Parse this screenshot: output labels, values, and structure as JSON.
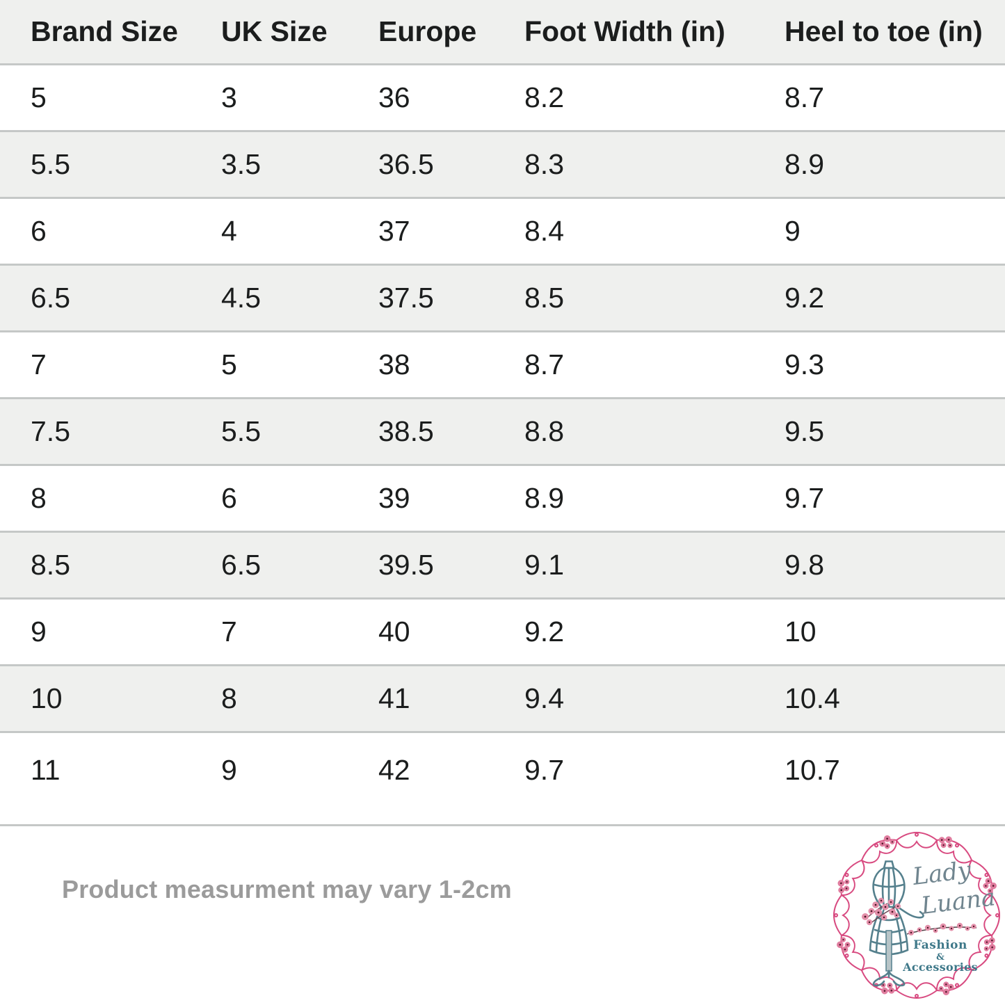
{
  "table": {
    "columns": [
      "Brand Size",
      "UK Size",
      "Europe",
      "Foot Width (in)",
      "Heel to toe (in)"
    ],
    "rows": [
      [
        "5",
        "3",
        "36",
        "8.2",
        "8.7"
      ],
      [
        "5.5",
        "3.5",
        "36.5",
        "8.3",
        "8.9"
      ],
      [
        "6",
        "4",
        "37",
        "8.4",
        "9"
      ],
      [
        "6.5",
        "4.5",
        "37.5",
        "8.5",
        "9.2"
      ],
      [
        "7",
        "5",
        "38",
        "8.7",
        "9.3"
      ],
      [
        "7.5",
        "5.5",
        "38.5",
        "8.8",
        "9.5"
      ],
      [
        "8",
        "6",
        "39",
        "8.9",
        "9.7"
      ],
      [
        "8.5",
        "6.5",
        "39.5",
        "9.1",
        "9.8"
      ],
      [
        "9",
        "7",
        "40",
        "9.2",
        "10"
      ],
      [
        "10",
        "8",
        "41",
        "9.4",
        "10.4"
      ],
      [
        "11",
        "9",
        "42",
        "9.7",
        "10.7"
      ]
    ]
  },
  "footer": {
    "note": "Product measurment may vary 1-2cm"
  },
  "logo": {
    "name_line1": "Lady",
    "name_line2": "Luana",
    "tagline": [
      "Fashion",
      "&",
      "Accessories"
    ]
  },
  "colors": {
    "row_alt_bg": "#eff0ee",
    "row_border": "#c5c8c7",
    "table_text": "#1b1d1d",
    "note_text": "#9b9b9b",
    "logo_frame_pink": "#d84a80",
    "logo_mannequin_teal": "#55808d",
    "logo_tagline_teal": "#3e7889",
    "logo_script_gray_teal": "#70858f",
    "logo_flower_pink": "#e390aa"
  }
}
